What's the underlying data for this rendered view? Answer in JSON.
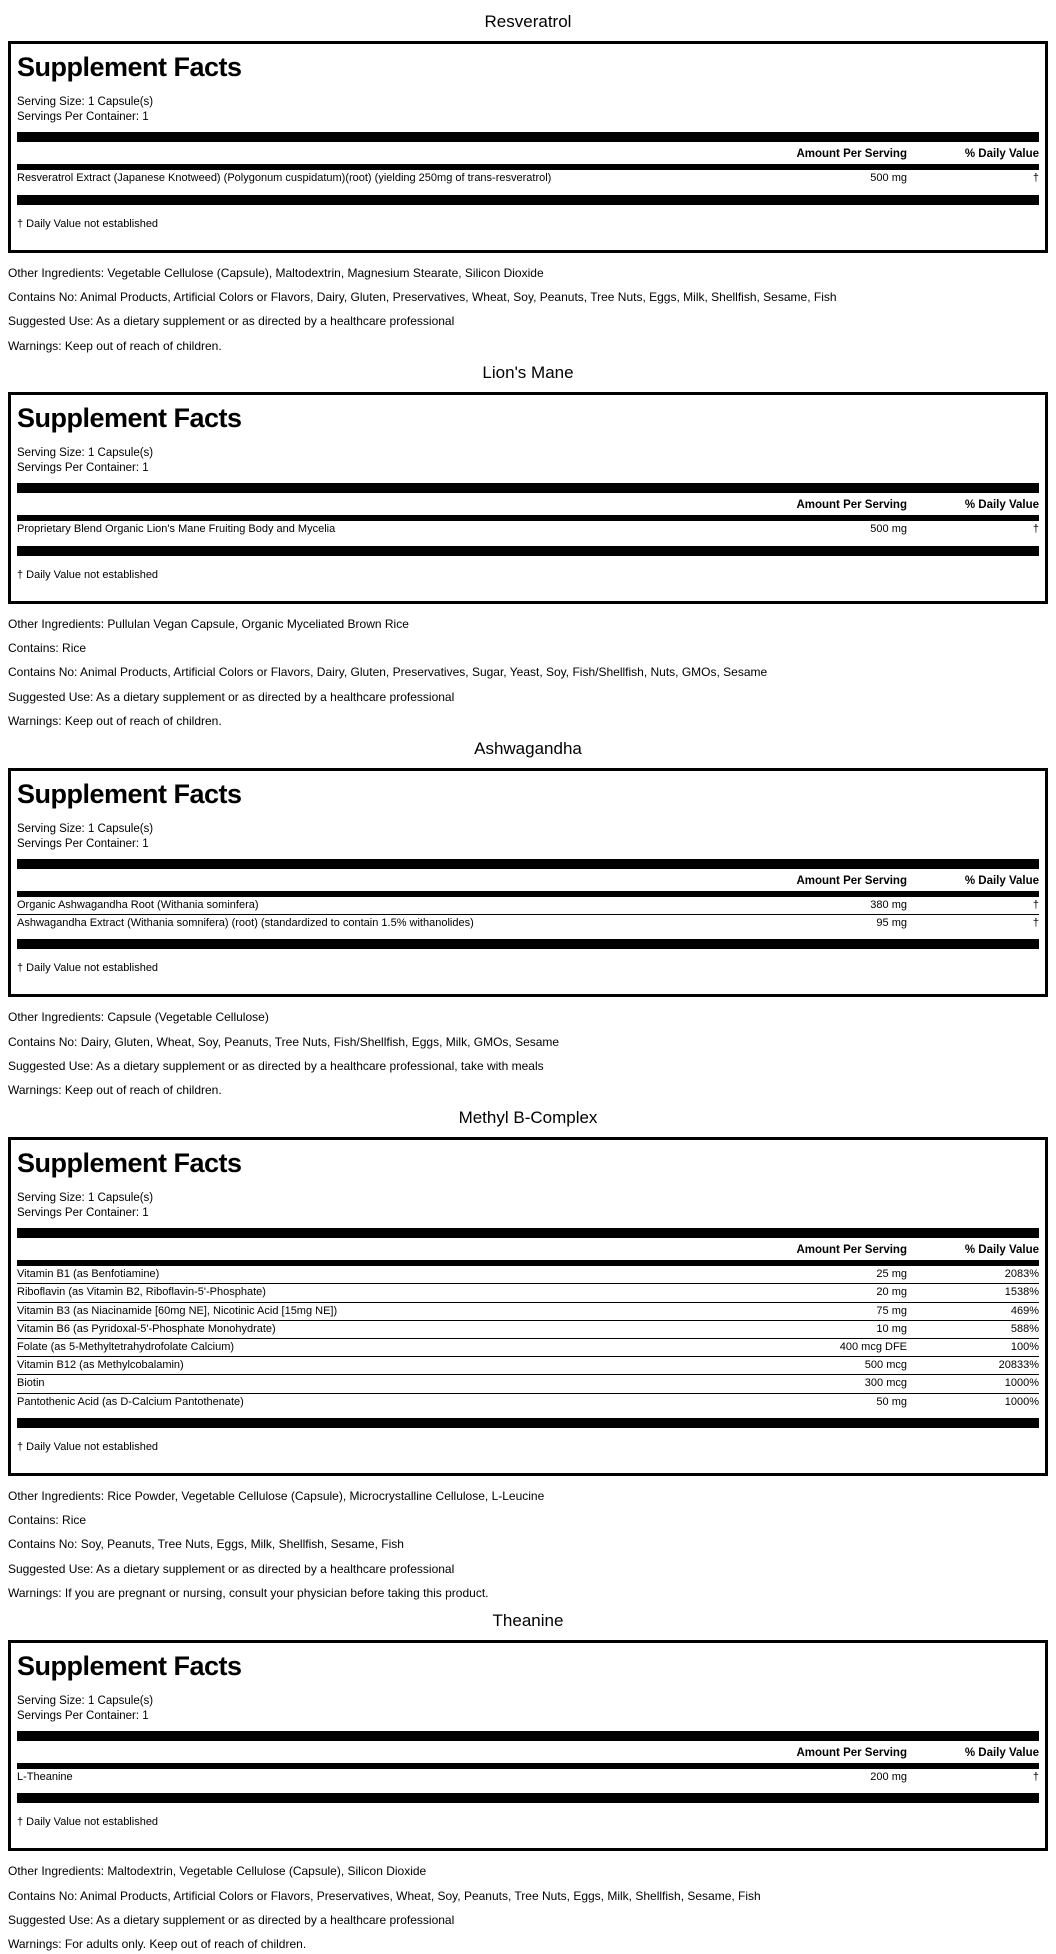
{
  "shared": {
    "facts_title": "Supplement Facts",
    "serving_size": "Serving Size: 1 Capsule(s)",
    "servings_per_container": "Servings Per Container: 1",
    "amount_header": "Amount Per Serving",
    "daily_value_header": "% Daily Value",
    "footnote": "† Daily Value not established"
  },
  "colors": {
    "ink": "#000000",
    "paper": "#ffffff"
  },
  "sections": [
    {
      "title": "Resveratrol",
      "rows": [
        {
          "name": "Resveratrol Extract (Japanese Knotweed) (Polygonum cuspidatum)(root) (yielding 250mg of trans-resveratrol)",
          "amount": "500 mg",
          "dv": "†"
        }
      ],
      "notes": [
        "Other Ingredients: Vegetable Cellulose (Capsule), Maltodextrin, Magnesium Stearate, Silicon Dioxide",
        "Contains No: Animal Products, Artificial Colors or Flavors, Dairy, Gluten, Preservatives, Wheat, Soy, Peanuts, Tree Nuts, Eggs, Milk, Shellfish, Sesame, Fish",
        "Suggested Use: As a dietary supplement or as directed by a healthcare professional",
        "Warnings: Keep out of reach of children."
      ]
    },
    {
      "title": "Lion's Mane",
      "rows": [
        {
          "name": "Proprietary Blend Organic Lion's Mane Fruiting Body and Mycelia",
          "amount": "500 mg",
          "dv": "†"
        }
      ],
      "notes": [
        "Other Ingredients: Pullulan Vegan Capsule, Organic Myceliated Brown Rice",
        "Contains: Rice",
        "Contains No: Animal Products, Artificial Colors or Flavors, Dairy, Gluten, Preservatives, Sugar, Yeast, Soy, Fish/Shellfish, Nuts, GMOs, Sesame",
        "Suggested Use: As a dietary supplement or as directed by a healthcare professional",
        "Warnings: Keep out of reach of children."
      ]
    },
    {
      "title": "Ashwagandha",
      "rows": [
        {
          "name": "Organic Ashwagandha Root (Withania sominfera)",
          "amount": "380 mg",
          "dv": "†"
        },
        {
          "name": "Ashwagandha Extract (Withania somnifera) (root) (standardized to contain 1.5% withanolides)",
          "amount": "95 mg",
          "dv": "†"
        }
      ],
      "notes": [
        "Other Ingredients: Capsule (Vegetable Cellulose)",
        "Contains No: Dairy, Gluten, Wheat, Soy, Peanuts, Tree Nuts, Fish/Shellfish, Eggs, Milk, GMOs, Sesame",
        "Suggested Use: As a dietary supplement or as directed by a healthcare professional, take with meals",
        "Warnings: Keep out of reach of children."
      ]
    },
    {
      "title": "Methyl B-Complex",
      "rows": [
        {
          "name": "Vitamin B1 (as Benfotiamine)",
          "amount": "25 mg",
          "dv": "2083%"
        },
        {
          "name": "Riboflavin (as Vitamin B2, Riboflavin-5'-Phosphate)",
          "amount": "20 mg",
          "dv": "1538%"
        },
        {
          "name": "Vitamin B3 (as Niacinamide [60mg NE], Nicotinic Acid [15mg NE])",
          "amount": "75 mg",
          "dv": "469%"
        },
        {
          "name": "Vitamin B6 (as Pyridoxal-5'-Phosphate Monohydrate)",
          "amount": "10 mg",
          "dv": "588%"
        },
        {
          "name": "Folate (as 5-Methyltetrahydrofolate Calcium)",
          "amount": "400 mcg DFE",
          "dv": "100%"
        },
        {
          "name": "Vitamin B12 (as Methylcobalamin)",
          "amount": "500 mcg",
          "dv": "20833%"
        },
        {
          "name": "Biotin",
          "amount": "300 mcg",
          "dv": "1000%"
        },
        {
          "name": "Pantothenic Acid (as D-Calcium Pantothenate)",
          "amount": "50 mg",
          "dv": "1000%"
        }
      ],
      "notes": [
        "Other Ingredients: Rice Powder, Vegetable Cellulose (Capsule), Microcrystalline Cellulose, L-Leucine",
        "Contains: Rice",
        "Contains No: Soy, Peanuts, Tree Nuts, Eggs, Milk, Shellfish, Sesame, Fish",
        "Suggested Use: As a dietary supplement or as directed by a healthcare professional",
        "Warnings: If you are pregnant or nursing, consult your physician before taking this product."
      ]
    },
    {
      "title": "Theanine",
      "rows": [
        {
          "name": "L-Theanine",
          "amount": "200 mg",
          "dv": "†"
        }
      ],
      "notes": [
        "Other Ingredients: Maltodextrin, Vegetable Cellulose (Capsule), Silicon Dioxide",
        "Contains No: Animal Products, Artificial Colors or Flavors, Preservatives, Wheat, Soy, Peanuts, Tree Nuts, Eggs, Milk, Shellfish, Sesame, Fish",
        "Suggested Use: As a dietary supplement or as directed by a healthcare professional",
        "Warnings: For adults only. Keep out of reach of children."
      ]
    }
  ]
}
